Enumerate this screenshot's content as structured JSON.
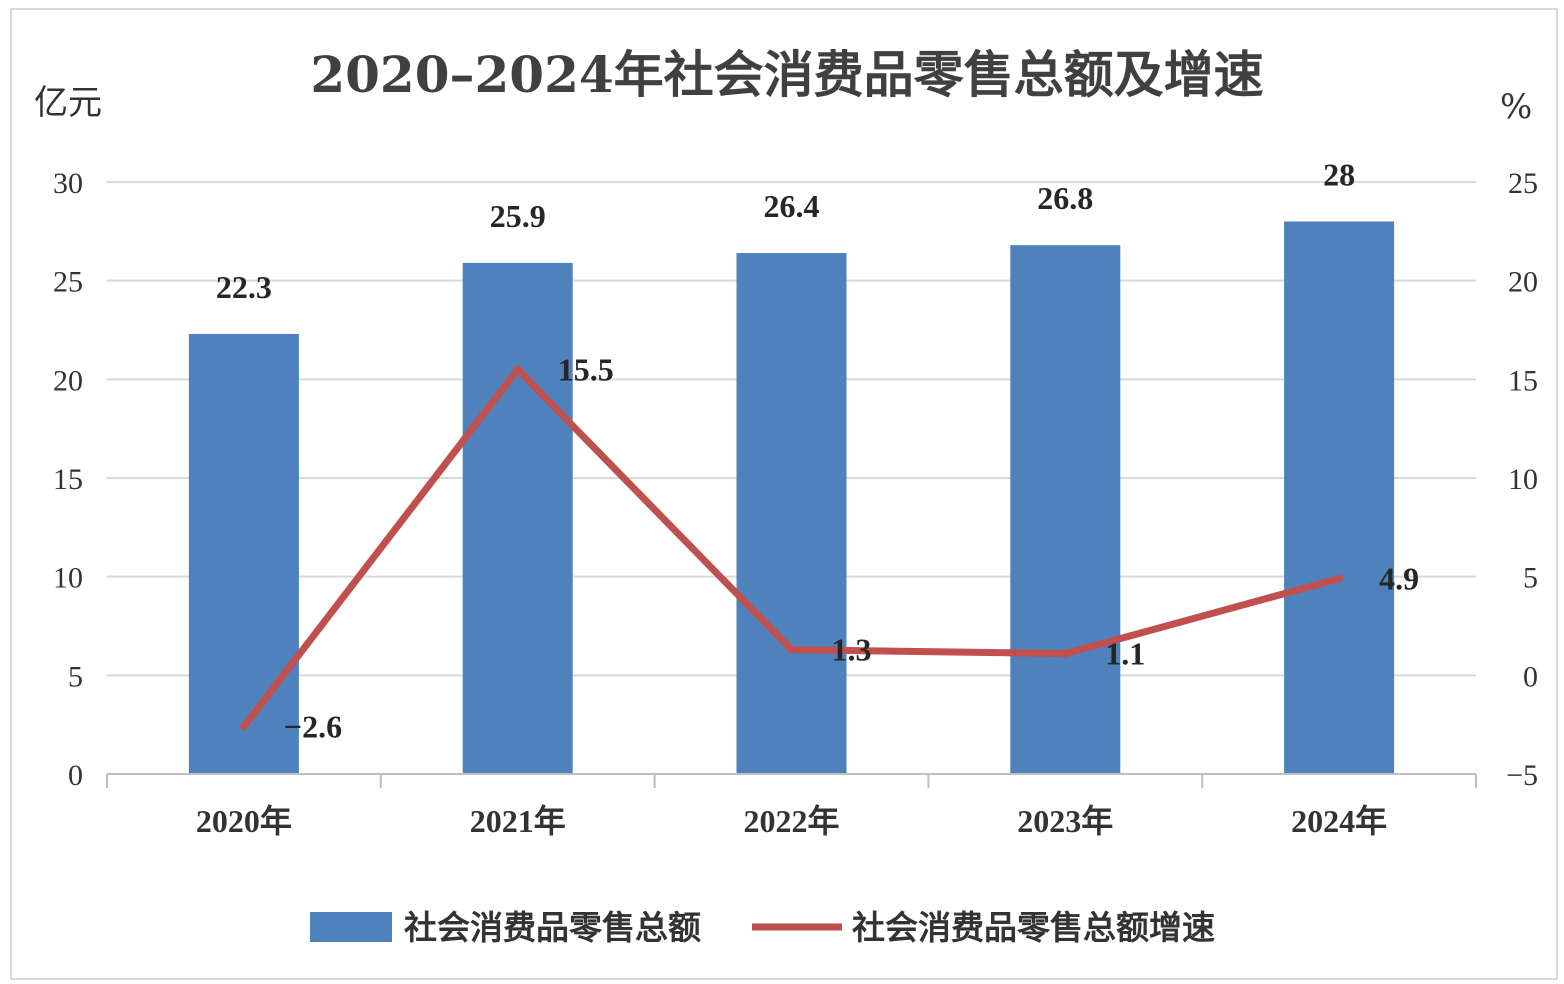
{
  "chart_data": {
    "type": "bar+line",
    "title": "2020–2024年社会消费品零售总额及增速",
    "left_unit": "亿元",
    "right_unit": "%",
    "categories": [
      "2020年",
      "2021年",
      "2022年",
      "2023年",
      "2024年"
    ],
    "y_left": {
      "min": 0,
      "max": 30,
      "step": 5,
      "ticks": [
        "0",
        "5",
        "10",
        "15",
        "20",
        "25",
        "30"
      ]
    },
    "y_right": {
      "min": -5,
      "max": 25,
      "step": 5,
      "ticks": [
        "−5",
        "0",
        "5",
        "10",
        "15",
        "20",
        "25"
      ]
    },
    "grid": true,
    "legend_position": "bottom",
    "series": [
      {
        "name": "社会消费品零售总额",
        "type": "bar",
        "axis": "left",
        "color": "#4F81BD",
        "values": [
          22.3,
          25.9,
          26.4,
          26.8,
          28
        ],
        "labels": [
          "22.3",
          "25.9",
          "26.4",
          "26.8",
          "28"
        ]
      },
      {
        "name": "社会消费品零售总额增速",
        "type": "line",
        "axis": "right",
        "color": "#C0504D",
        "values": [
          -2.6,
          15.5,
          1.3,
          1.1,
          4.9
        ],
        "labels": [
          "−2.6",
          "15.5",
          "1.3",
          "1.1",
          "4.9"
        ]
      }
    ]
  }
}
